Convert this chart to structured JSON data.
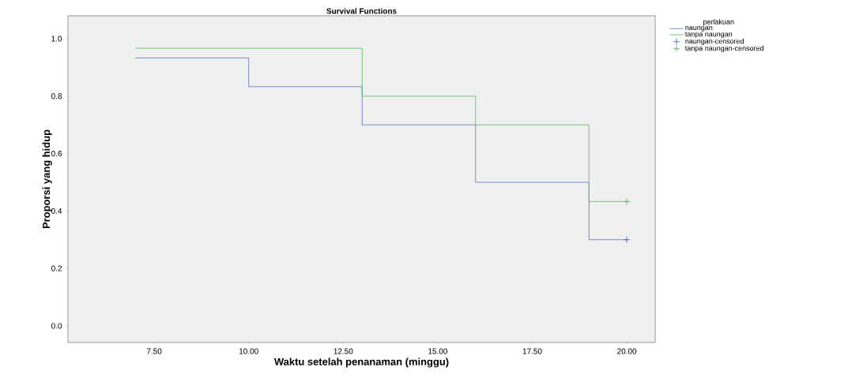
{
  "chart_data": {
    "type": "step",
    "title": "Survival Functions",
    "xlabel": "Waktu setelah penanaman (minggu)",
    "ylabel": "Proporsi yang hidup",
    "legend_title": "perlakuan",
    "legend": "right",
    "xlim": [
      5.22,
      20.75
    ],
    "ylim": [
      -0.058,
      1.08
    ],
    "xticks": [
      {
        "value": 7.5,
        "label": "7.50"
      },
      {
        "value": 10,
        "label": "10.00"
      },
      {
        "value": 12.5,
        "label": "12.50"
      },
      {
        "value": 15,
        "label": "15.00"
      },
      {
        "value": 17.5,
        "label": "17.50"
      },
      {
        "value": 20,
        "label": "20.00"
      }
    ],
    "yticks": [
      {
        "value": 0,
        "label": "0.0"
      },
      {
        "value": 0.2,
        "label": "0.2"
      },
      {
        "value": 0.4,
        "label": "0.4"
      },
      {
        "value": 0.6,
        "label": "0.6"
      },
      {
        "value": 0.8,
        "label": "0.8"
      },
      {
        "value": 1.0,
        "label": "1.0"
      }
    ],
    "grid": false,
    "series": [
      {
        "name": "naungan",
        "marker": "none",
        "color": "#5b6fc6",
        "x": [
          7,
          10,
          13,
          16,
          19,
          20
        ],
        "values": [
          0.933,
          0.833,
          0.7,
          0.5,
          0.3,
          0.3
        ]
      },
      {
        "name": "tanpa naungan",
        "marker": "none",
        "color": "#45c24f",
        "x": [
          7,
          13,
          16,
          19,
          20
        ],
        "values": [
          0.967,
          0.8,
          0.7,
          0.433,
          0.433
        ]
      },
      {
        "name": "naungan-censored",
        "type": "scatter",
        "marker": "cross",
        "color": "#3f52b8",
        "x": [
          20
        ],
        "values": [
          0.3
        ]
      },
      {
        "name": "tanpa naungan-censored",
        "type": "scatter",
        "marker": "cross",
        "color": "#2fb53c",
        "x": [
          20
        ],
        "values": [
          0.433
        ]
      }
    ]
  }
}
